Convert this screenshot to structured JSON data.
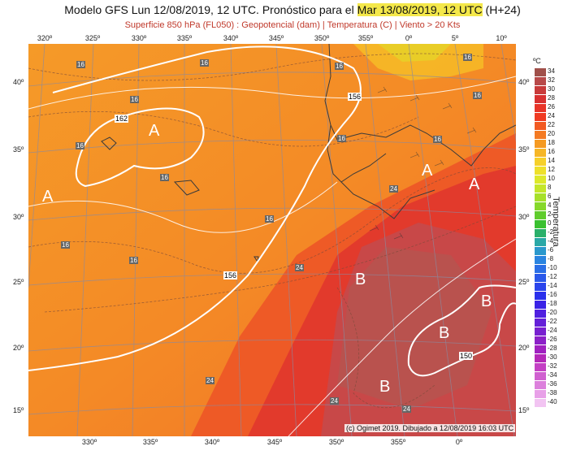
{
  "header": {
    "title_pre": "Modelo GFS Lun 12/08/2019, 12 UTC. Pronóstico para el ",
    "title_highlight": "Mar 13/08/2019, 12 UTC",
    "title_post": " (H+24)",
    "subtitle": "Superficie 850 hPa (FL050) : Geopotencial (dam) | Temperatura (C) | Viento > 20 Kts"
  },
  "axes": {
    "lon_top": [
      "320º",
      "325º",
      "330º",
      "335º",
      "340º",
      "345º",
      "350º",
      "355º",
      "0º",
      "5º",
      "10º"
    ],
    "lon_bottom": [
      "330º",
      "335º",
      "340º",
      "345º",
      "350º",
      "355º",
      "0º"
    ],
    "lat_left": [
      "40º",
      "35º",
      "30º",
      "25º",
      "20º",
      "15º"
    ],
    "lat_right": [
      "40º",
      "35º",
      "30º",
      "25º",
      "20º",
      "15º"
    ]
  },
  "map": {
    "pressure_centers": [
      {
        "label": "A"
      },
      {
        "label": "A"
      },
      {
        "label": "A"
      },
      {
        "label": "A"
      },
      {
        "label": "B"
      },
      {
        "label": "B"
      },
      {
        "label": "B"
      },
      {
        "label": "B"
      }
    ],
    "isohypse_labels": [
      "162",
      "156",
      "156",
      "150"
    ],
    "temp_labels": [
      "16",
      "16",
      "16",
      "16",
      "16",
      "16",
      "16",
      "16",
      "16",
      "16",
      "16",
      "16",
      "16",
      "24",
      "24",
      "24",
      "24",
      "24"
    ]
  },
  "legend": {
    "unit": "ºC",
    "title": "Temperatura",
    "steps": [
      {
        "label": "34",
        "color": "#a0504a"
      },
      {
        "label": "32",
        "color": "#b84a4a"
      },
      {
        "label": "30",
        "color": "#c83a3a"
      },
      {
        "label": "28",
        "color": "#d83030"
      },
      {
        "label": "26",
        "color": "#e83428"
      },
      {
        "label": "24",
        "color": "#f03a22"
      },
      {
        "label": "22",
        "color": "#f25a22"
      },
      {
        "label": "20",
        "color": "#f47a22"
      },
      {
        "label": "18",
        "color": "#f59a22"
      },
      {
        "label": "16",
        "color": "#f6b626"
      },
      {
        "label": "14",
        "color": "#f6d02a"
      },
      {
        "label": "12",
        "color": "#eee02a"
      },
      {
        "label": "10",
        "color": "#dde82a"
      },
      {
        "label": "8",
        "color": "#c4e62a"
      },
      {
        "label": "6",
        "color": "#a6e02a"
      },
      {
        "label": "4",
        "color": "#86d82a"
      },
      {
        "label": "2",
        "color": "#60cc2c"
      },
      {
        "label": "0",
        "color": "#3ac030"
      },
      {
        "label": "-2",
        "color": "#2ab06a"
      },
      {
        "label": "-4",
        "color": "#2aa8a6"
      },
      {
        "label": "-6",
        "color": "#2a98cc"
      },
      {
        "label": "-8",
        "color": "#2a84e0"
      },
      {
        "label": "-10",
        "color": "#2a6ee6"
      },
      {
        "label": "-12",
        "color": "#2a58ea"
      },
      {
        "label": "-14",
        "color": "#2a44ec"
      },
      {
        "label": "-16",
        "color": "#2a30ec"
      },
      {
        "label": "-18",
        "color": "#3a22e6"
      },
      {
        "label": "-20",
        "color": "#5020e0"
      },
      {
        "label": "-22",
        "color": "#6420d8"
      },
      {
        "label": "-24",
        "color": "#7820d0"
      },
      {
        "label": "-26",
        "color": "#8c20c8"
      },
      {
        "label": "-28",
        "color": "#a020c0"
      },
      {
        "label": "-30",
        "color": "#b428b8"
      },
      {
        "label": "-32",
        "color": "#c440c4"
      },
      {
        "label": "-34",
        "color": "#d060d0"
      },
      {
        "label": "-36",
        "color": "#dc80dc"
      },
      {
        "label": "-38",
        "color": "#e8a0e8"
      },
      {
        "label": "-40",
        "color": "#f2c4f2"
      }
    ]
  },
  "footer": {
    "credit": "(c) Ogimet 2019. Dibujado a 12/08/2019 16:03 UTC"
  }
}
